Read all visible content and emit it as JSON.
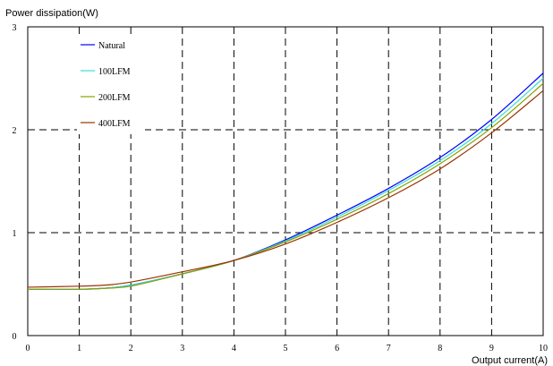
{
  "chart_data": {
    "type": "line",
    "ylabel": "Power dissipation(W)",
    "xlabel": "Output current(A)",
    "xlim": [
      0,
      10
    ],
    "ylim": [
      0,
      3
    ],
    "xticks": [
      "0",
      "1",
      "2",
      "3",
      "4",
      "5",
      "6",
      "7",
      "8",
      "9",
      "10"
    ],
    "yticks": [
      "0",
      "1",
      "2",
      "3"
    ],
    "grid": true,
    "legend_position": "top-left inside",
    "x": [
      0,
      1,
      1.5,
      2,
      3,
      4,
      5,
      6,
      7,
      8,
      9,
      10
    ],
    "series": [
      {
        "name": "Natural",
        "color": "#0000ff",
        "values": [
          0.45,
          0.45,
          0.46,
          0.49,
          0.6,
          0.73,
          0.93,
          1.17,
          1.43,
          1.73,
          2.1,
          2.55
        ]
      },
      {
        "name": "100LFM",
        "color": "#33dddd",
        "values": [
          0.45,
          0.45,
          0.46,
          0.49,
          0.6,
          0.73,
          0.92,
          1.15,
          1.41,
          1.7,
          2.06,
          2.5
        ]
      },
      {
        "name": "200LFM",
        "color": "#88a000",
        "values": [
          0.45,
          0.45,
          0.46,
          0.48,
          0.6,
          0.73,
          0.91,
          1.13,
          1.38,
          1.67,
          2.02,
          2.45
        ]
      },
      {
        "name": "400LFM",
        "color": "#993300",
        "values": [
          0.47,
          0.48,
          0.49,
          0.52,
          0.62,
          0.73,
          0.89,
          1.1,
          1.34,
          1.62,
          1.97,
          2.38
        ]
      }
    ]
  }
}
